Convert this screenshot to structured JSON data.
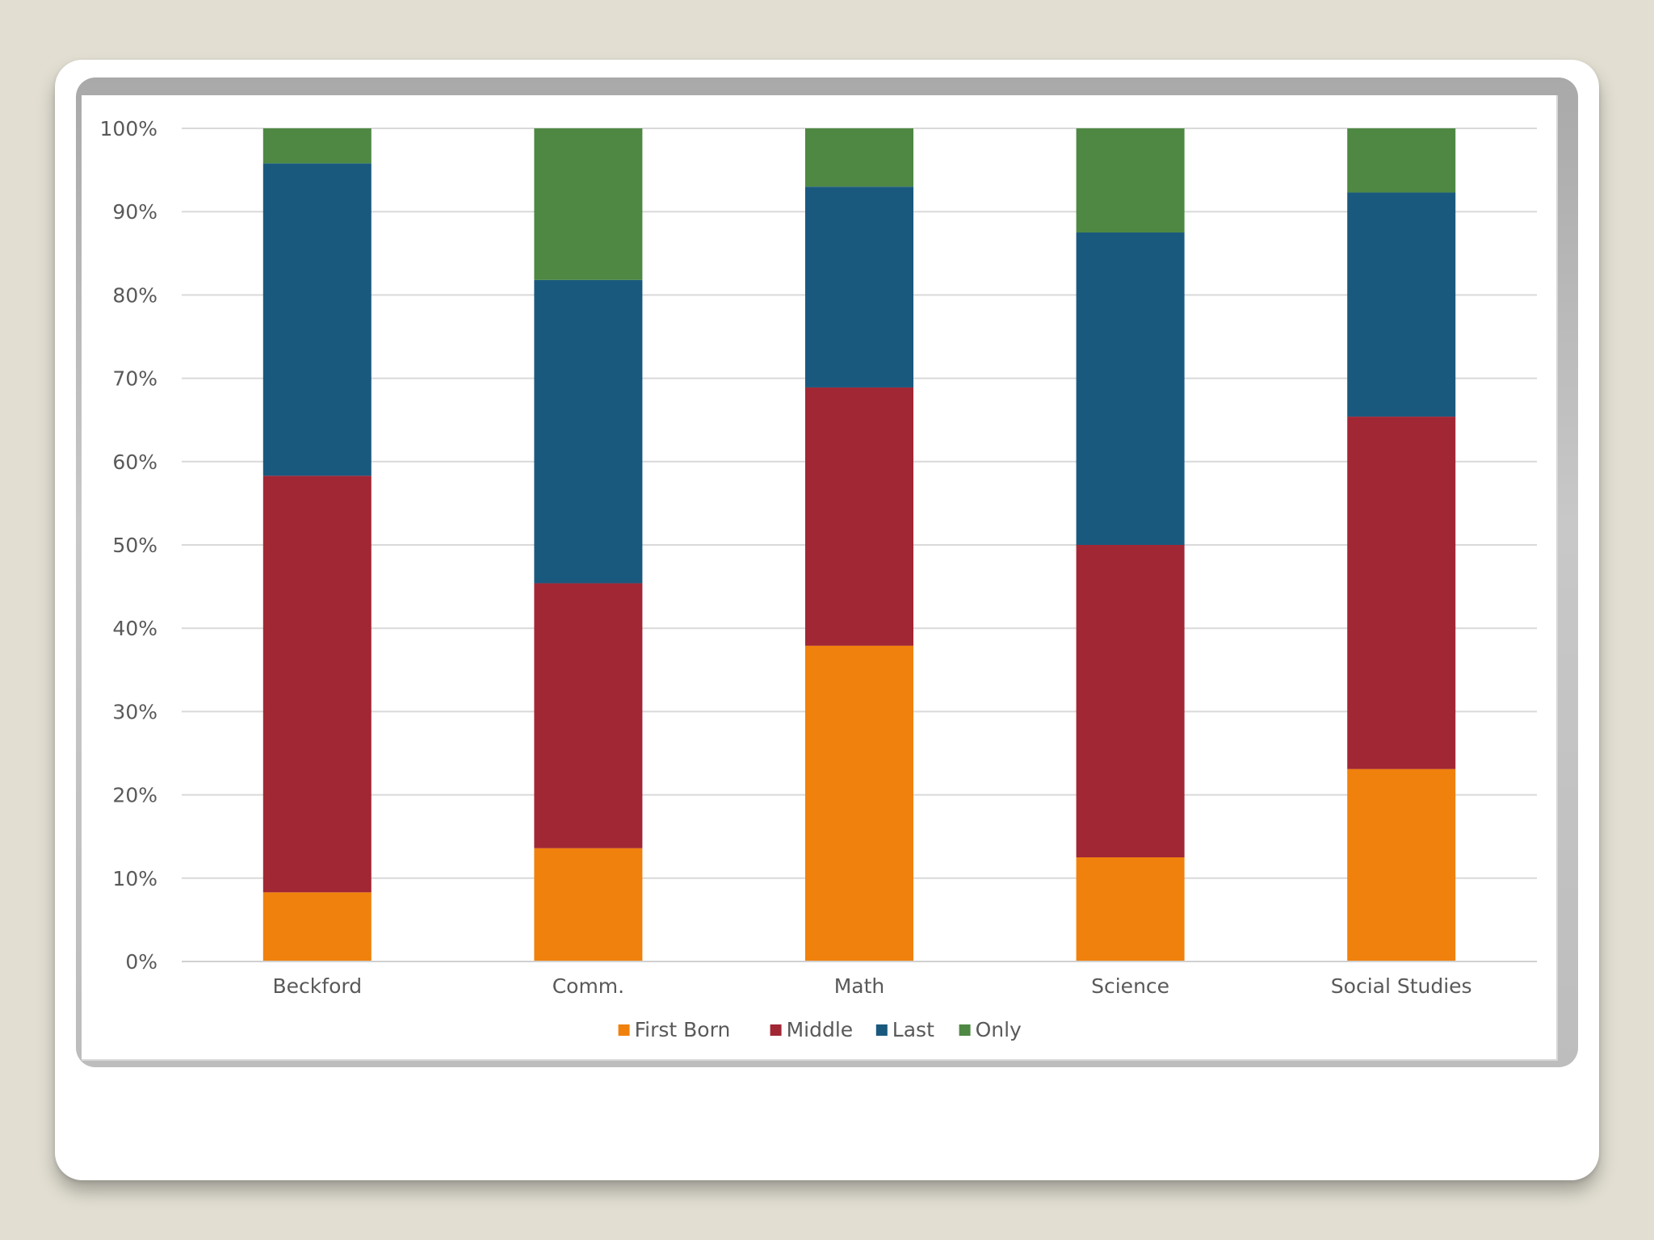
{
  "chart_data": {
    "type": "bar",
    "stacked": true,
    "percent": true,
    "title": "",
    "xlabel": "",
    "ylabel": "",
    "categories": [
      "Beckford",
      "Comm.",
      "Math",
      "Science",
      "Social Studies"
    ],
    "ylim": [
      0,
      100
    ],
    "yticks": [
      "0%",
      "10%",
      "20%",
      "30%",
      "40%",
      "50%",
      "60%",
      "70%",
      "80%",
      "90%",
      "100%"
    ],
    "grid": true,
    "legend_position": "bottom",
    "series": [
      {
        "name": "First Born",
        "color": "#f0810c",
        "values": [
          8.3,
          13.6,
          37.9,
          12.5,
          23.1
        ]
      },
      {
        "name": "Middle",
        "color": "#a12735",
        "values": [
          50.0,
          31.8,
          31.0,
          37.5,
          42.3
        ]
      },
      {
        "name": "Last",
        "color": "#1a597e",
        "values": [
          37.5,
          36.4,
          24.1,
          37.5,
          26.9
        ]
      },
      {
        "name": "Only",
        "color": "#4e8843",
        "values": [
          4.2,
          18.2,
          7.0,
          12.5,
          7.7
        ]
      }
    ]
  }
}
